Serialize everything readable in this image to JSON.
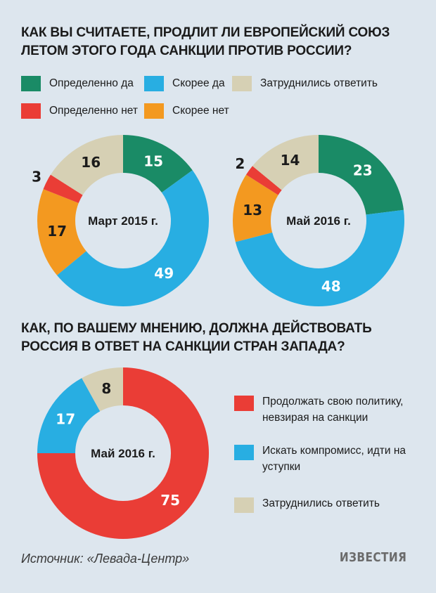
{
  "q1": {
    "title": "КАК ВЫ СЧИТАЕТЕ, ПРОДЛИТ ЛИ ЕВРОПЕЙСКИЙ СОЮЗ ЛЕТОМ ЭТОГО ГОДА САНКЦИИ ПРОТИВ РОССИИ?"
  },
  "legend1": [
    {
      "label": "Определенно да",
      "color": "#1a8b66"
    },
    {
      "label": "Скорее да",
      "color": "#28aee2"
    },
    {
      "label": "Затруднились ответить",
      "color": "#d6d0b4"
    },
    {
      "label": "Определенно нет",
      "color": "#ea3d36"
    },
    {
      "label": "Скорее нет",
      "color": "#f39920"
    }
  ],
  "q2": {
    "title": "КАК, ПО ВАШЕМУ МНЕНИЮ, ДОЛЖНА ДЕЙСТВОВАТЬ РОССИЯ В ОТВЕТ НА САНКЦИИ СТРАН ЗАПАДА?"
  },
  "legend2": [
    {
      "label": "Продолжать свою политику, невзирая на санкции",
      "color": "#ea3d36"
    },
    {
      "label": "Искать компромисс, идти на уступки",
      "color": "#28aee2"
    },
    {
      "label": "Затруднились ответить",
      "color": "#d6d0b4"
    }
  ],
  "chart_data": [
    {
      "type": "pie",
      "title": "Март 2015 г.",
      "categories": [
        "Определенно да",
        "Скорее да",
        "Скорее нет",
        "Определенно нет",
        "Затруднились ответить"
      ],
      "values": [
        15,
        49,
        17,
        3,
        16
      ],
      "colors": [
        "#1a8b66",
        "#28aee2",
        "#f39920",
        "#ea3d36",
        "#d6d0b4"
      ]
    },
    {
      "type": "pie",
      "title": "Май 2016 г.",
      "categories": [
        "Определенно да",
        "Скорее да",
        "Скорее нет",
        "Определенно нет",
        "Затруднились ответить"
      ],
      "values": [
        23,
        48,
        13,
        2,
        14
      ],
      "colors": [
        "#1a8b66",
        "#28aee2",
        "#f39920",
        "#ea3d36",
        "#d6d0b4"
      ]
    },
    {
      "type": "pie",
      "title": "Май 2016 г.",
      "categories": [
        "Продолжать свою политику, невзирая на санкции",
        "Искать компромисс, идти на уступки",
        "Затруднились ответить"
      ],
      "values": [
        75,
        17,
        8
      ],
      "colors": [
        "#ea3d36",
        "#28aee2",
        "#d6d0b4"
      ]
    }
  ],
  "footer": {
    "source": "Источник: «Левада-Центр»",
    "logo": "ИЗВЕСТИЯ"
  }
}
